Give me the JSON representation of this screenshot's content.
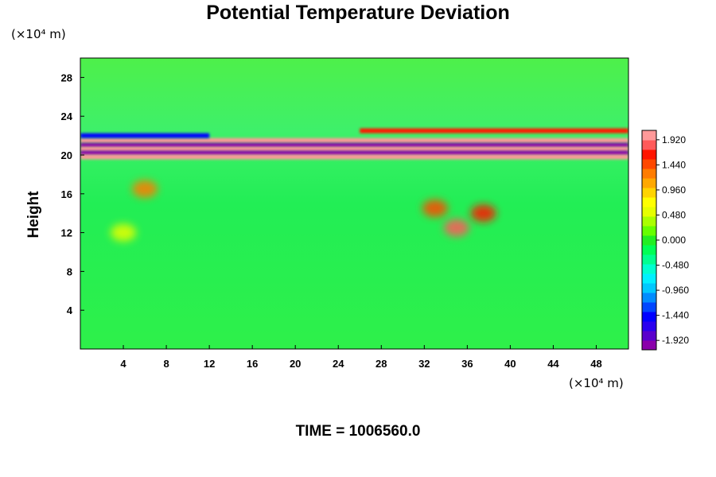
{
  "chart_data": {
    "type": "heatmap",
    "title": "Potential Temperature Deviation",
    "ylabel": "Height",
    "y_unit": "(×10⁴ m)",
    "x_unit": "(×10⁴ m)",
    "xlim": [
      0,
      51
    ],
    "ylim": [
      0,
      30
    ],
    "x_ticks": [
      "4",
      "8",
      "12",
      "16",
      "20",
      "24",
      "28",
      "32",
      "36",
      "40",
      "44",
      "48"
    ],
    "y_ticks": [
      "4",
      "8",
      "12",
      "16",
      "20",
      "24",
      "28"
    ],
    "colorbar": {
      "range": [
        -2.1,
        2.1
      ],
      "tick_labels": [
        "1.920",
        "1.440",
        "0.960",
        "0.480",
        "0.000",
        "-0.480",
        "-0.960",
        "-1.440",
        "-1.920"
      ]
    },
    "background_value": 0.0,
    "features": [
      {
        "kind": "band",
        "y": 21.5,
        "x_range": [
          0,
          51
        ],
        "value": 2.1
      },
      {
        "kind": "band",
        "y": 21.0,
        "x_range": [
          0,
          51
        ],
        "value": -2.1
      },
      {
        "kind": "band",
        "y": 20.6,
        "x_range": [
          0,
          51
        ],
        "value": 2.1
      },
      {
        "kind": "band",
        "y": 20.2,
        "x_range": [
          0,
          51
        ],
        "value": -2.1
      },
      {
        "kind": "band",
        "y": 19.8,
        "x_range": [
          0,
          51
        ],
        "value": 2.1
      },
      {
        "kind": "band",
        "y": 22.5,
        "x_range": [
          26,
          51
        ],
        "value": 1.6
      },
      {
        "kind": "band",
        "y": 22.0,
        "x_range": [
          0,
          12
        ],
        "value": -1.5
      },
      {
        "kind": "blob",
        "x": 33,
        "y": 14.5,
        "value": 1.4
      },
      {
        "kind": "blob",
        "x": 37.5,
        "y": 14.0,
        "value": 1.6
      },
      {
        "kind": "blob",
        "x": 35,
        "y": 12.5,
        "value": 1.9
      },
      {
        "kind": "blob",
        "x": 6,
        "y": 16.5,
        "value": 1.2
      },
      {
        "kind": "blob",
        "x": 4,
        "y": 12.0,
        "value": 0.6
      }
    ]
  },
  "time_label": "TIME = 1006560.0"
}
